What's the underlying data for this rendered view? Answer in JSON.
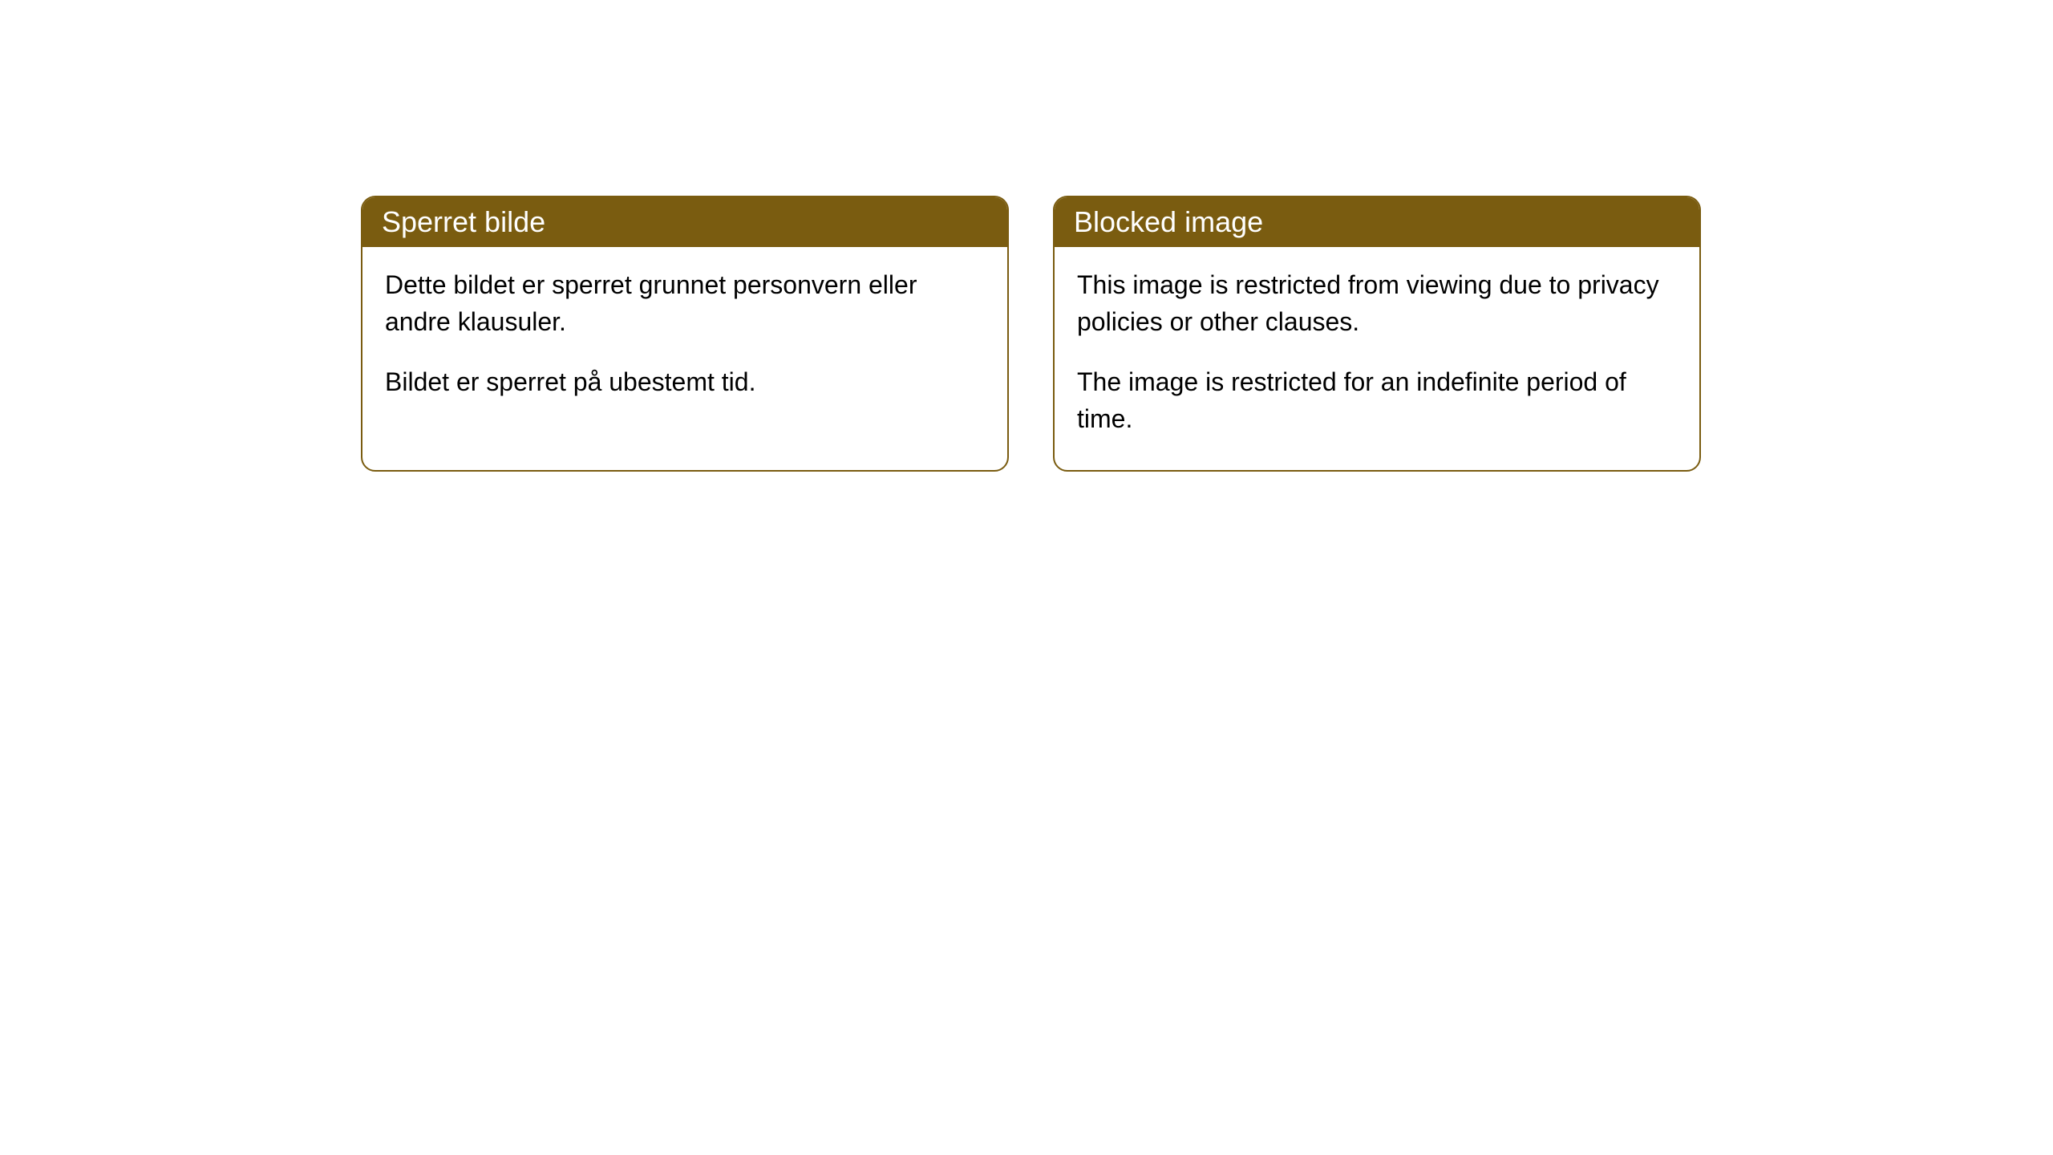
{
  "cards": [
    {
      "title": "Sperret bilde",
      "paragraph1": "Dette bildet er sperret grunnet personvern eller andre klausuler.",
      "paragraph2": "Bildet er sperret på ubestemt tid."
    },
    {
      "title": "Blocked image",
      "paragraph1": "This image is restricted from viewing due to privacy policies or other clauses.",
      "paragraph2": "The image is restricted for an indefinite period of time."
    }
  ],
  "style": {
    "header_bg_color": "#7a5c10",
    "header_text_color": "#ffffff",
    "border_color": "#7a5c10",
    "body_bg_color": "#ffffff",
    "body_text_color": "#000000",
    "border_radius": 18,
    "title_fontsize": 36,
    "body_fontsize": 32
  }
}
